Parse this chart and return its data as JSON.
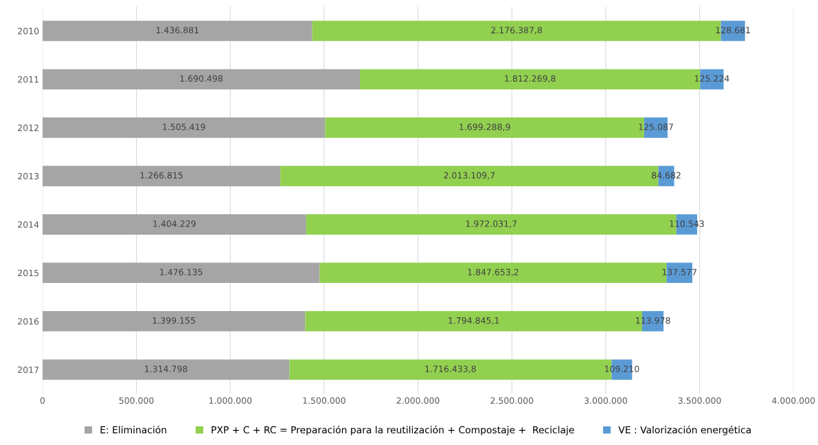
{
  "chart_data": {
    "type": "bar",
    "orientation": "horizontal",
    "stacked": true,
    "categories": [
      "2010",
      "2011",
      "2012",
      "2013",
      "2014",
      "2015",
      "2016",
      "2017"
    ],
    "series": [
      {
        "name": "E: Eliminación",
        "color": "#a5a5a5",
        "values": [
          1436881,
          1690498,
          1505419,
          1266815,
          1404229,
          1476135,
          1399155,
          1314798
        ],
        "value_labels": [
          "1.436.881",
          "1.690.498",
          "1.505.419",
          "1.266.815",
          "1.404.229",
          "1.476.135",
          "1.399.155",
          "1.314.798"
        ]
      },
      {
        "name": "PXP + C + RC = Preparación para la reutilización + Compostaje +  Reciclaje",
        "color": "#92d050",
        "values": [
          2176387.8,
          1812269.8,
          1699288.9,
          2013109.7,
          1972031.7,
          1847653.2,
          1794845.1,
          1716433.8
        ],
        "value_labels": [
          "2.176.387,8",
          "1.812.269,8",
          "1.699.288,9",
          "2.013.109,7",
          "1.972.031,7",
          "1.847.653,2",
          "1.794.845,1",
          "1.716.433,8"
        ]
      },
      {
        "name": "VE : Valorización energética",
        "color": "#5b9bd5",
        "values": [
          128681,
          125224,
          125087,
          84682,
          110543,
          137577,
          113978,
          109210
        ],
        "value_labels": [
          "128.681",
          "125.224",
          "125.087",
          "84.682",
          "110.543",
          "137.577",
          "113.978",
          "109.210"
        ]
      }
    ],
    "xlim": [
      0,
      4000000
    ],
    "xticks": [
      0,
      {
        "value": 500000,
        "label": "500.000"
      },
      {
        "value": 1000000,
        "label": "1.000.000"
      },
      {
        "value": 1500000,
        "label": "1.500.000"
      },
      {
        "value": 2000000,
        "label": "2.000.000"
      },
      {
        "value": 2500000,
        "label": "2.500.000"
      },
      {
        "value": 3000000,
        "label": "3.000.000"
      },
      {
        "value": 3500000,
        "label": "3.500.000"
      },
      {
        "value": 4000000,
        "label": "4.000.000"
      }
    ],
    "grid": "x",
    "legend": "bottom"
  }
}
